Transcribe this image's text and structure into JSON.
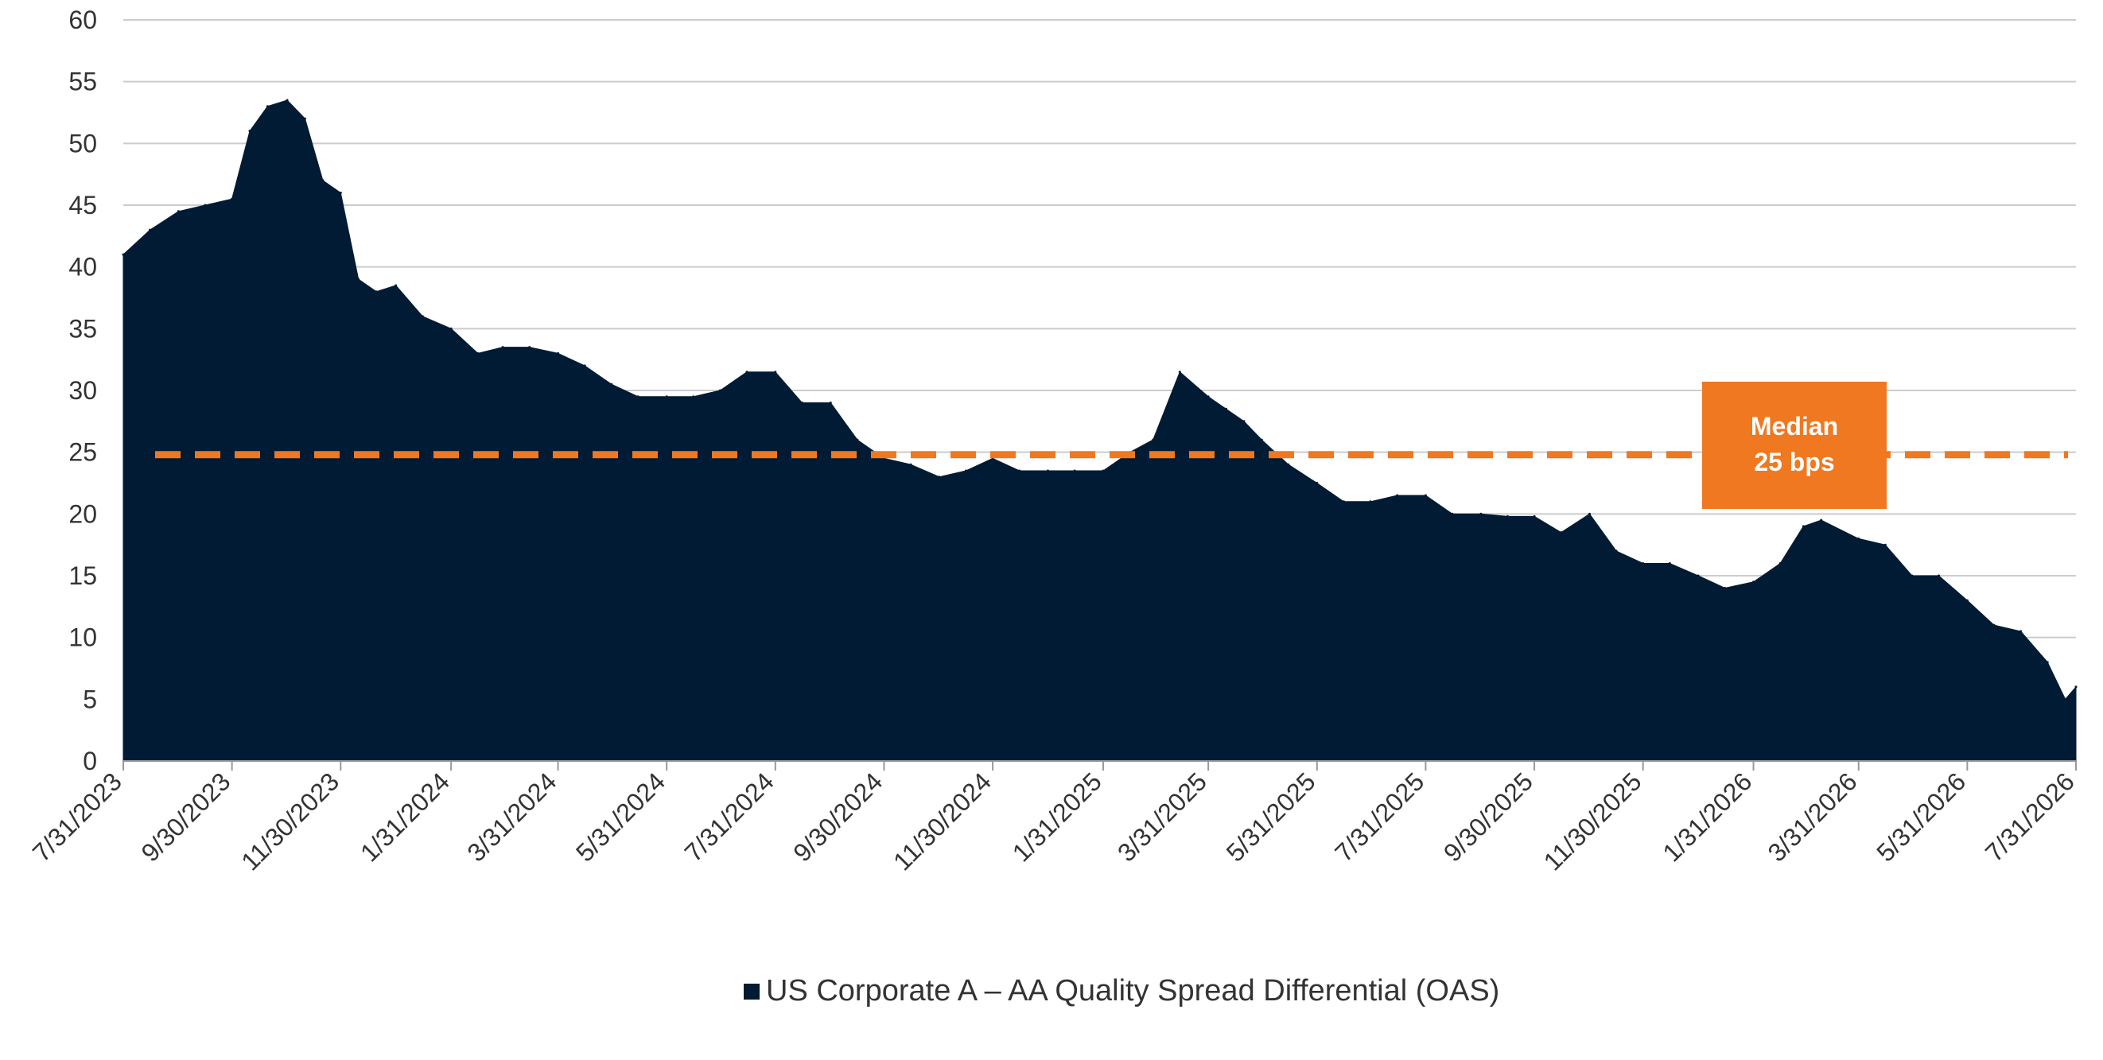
{
  "chart_data": {
    "type": "area",
    "title": "",
    "xlabel": "",
    "ylabel": "",
    "ylim": [
      0,
      60
    ],
    "y_ticks": [
      "0",
      "5",
      "10",
      "15",
      "20",
      "25",
      "30",
      "35",
      "40",
      "45",
      "50",
      "55",
      "60"
    ],
    "x_tick_labels": [
      "7/31/2023",
      "9/30/2023",
      "11/30/2023",
      "1/31/2024",
      "3/31/2024",
      "5/31/2024",
      "7/31/2024",
      "9/30/2024",
      "11/30/2024",
      "1/31/2025",
      "3/31/2025",
      "5/31/2025",
      "7/31/2025",
      "9/30/2025",
      "11/30/2025",
      "1/31/2026",
      "3/31/2026",
      "5/31/2026",
      "7/31/2026"
    ],
    "grid": "horizontal",
    "legend_position": "bottom-center",
    "series": [
      {
        "name": "US Corporate A – AA Quality Spread Differential (OAS)",
        "color": "#001b33",
        "x": [
          "7/31/2023",
          "8/15/2023",
          "8/31/2023",
          "9/15/2023",
          "9/30/2023",
          "10/10/2023",
          "10/20/2023",
          "10/31/2023",
          "11/10/2023",
          "11/20/2023",
          "11/30/2023",
          "12/10/2023",
          "12/20/2023",
          "12/31/2023",
          "1/15/2024",
          "1/31/2024",
          "2/15/2024",
          "2/29/2024",
          "3/15/2024",
          "3/31/2024",
          "4/15/2024",
          "4/30/2024",
          "5/15/2024",
          "5/31/2024",
          "6/15/2024",
          "6/30/2024",
          "7/15/2024",
          "7/31/2024",
          "8/15/2024",
          "8/31/2024",
          "9/15/2024",
          "9/30/2024",
          "10/15/2024",
          "10/31/2024",
          "11/15/2024",
          "11/30/2024",
          "12/15/2024",
          "12/31/2024",
          "1/15/2025",
          "1/31/2025",
          "2/15/2025",
          "2/28/2025",
          "3/15/2025",
          "3/31/2025",
          "4/10/2025",
          "4/20/2025",
          "4/30/2025",
          "5/15/2025",
          "5/31/2025",
          "6/15/2025",
          "6/30/2025",
          "7/15/2025",
          "7/31/2025",
          "8/15/2025",
          "8/31/2025",
          "9/15/2025",
          "9/30/2025",
          "10/15/2025",
          "10/31/2025",
          "11/15/2025",
          "11/30/2025",
          "12/15/2025",
          "12/31/2025",
          "1/15/2026",
          "1/31/2026",
          "2/15/2026",
          "2/28/2026",
          "3/10/2026",
          "3/31/2026",
          "4/15/2026",
          "4/30/2026",
          "5/15/2026",
          "5/31/2026",
          "6/15/2026",
          "6/30/2026",
          "7/15/2026",
          "7/25/2026",
          "7/31/2026"
        ],
        "values": [
          41,
          43,
          44.5,
          45,
          45.5,
          51,
          53,
          53.5,
          52,
          47,
          46,
          39,
          38,
          38.5,
          36,
          35,
          33,
          33.5,
          33.5,
          33,
          32,
          30.5,
          29.5,
          29.5,
          29.5,
          30,
          31.5,
          31.5,
          29,
          29,
          26,
          24.5,
          24,
          23,
          23.5,
          24.5,
          23.5,
          23.5,
          23.5,
          23.5,
          25,
          26,
          31.5,
          29.5,
          28.5,
          27.5,
          26,
          24,
          22.5,
          21,
          21,
          21.5,
          21.5,
          20,
          20,
          19.8,
          19.8,
          18.5,
          20,
          17,
          16,
          16,
          15,
          14,
          14.5,
          16,
          19,
          19.5,
          18,
          17.5,
          15,
          15,
          13,
          11,
          10.5,
          8,
          5,
          6
        ]
      }
    ],
    "median_line": {
      "value": 24.8,
      "color": "#f07820"
    },
    "annotation": {
      "line1": "Median",
      "line2": "25 bps",
      "color": "#f07820"
    }
  }
}
